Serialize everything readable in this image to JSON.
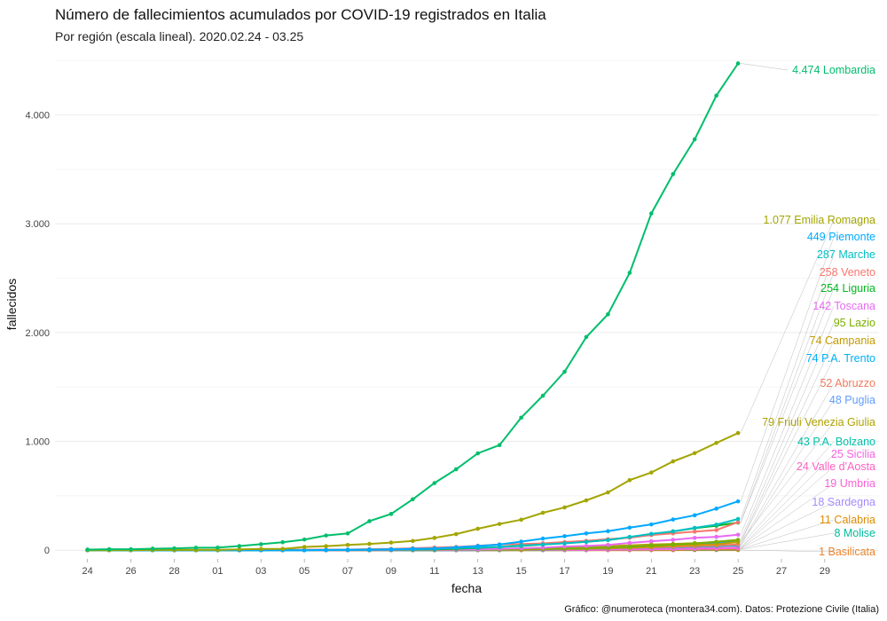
{
  "chart_data": {
    "type": "line",
    "title": "Número de fallecimientos acumulados por COVID-19 registrados en Italia",
    "subtitle": "Por región (escala lineal). 2020.02.24 - 03.25",
    "xlabel": "fecha",
    "ylabel": "fallecidos",
    "caption": "Gráfico: @numeroteca (montera34.com). Datos: Protezione Civile (Italia)",
    "x": [
      "24",
      "25",
      "26",
      "27",
      "28",
      "29",
      "01",
      "02",
      "03",
      "04",
      "05",
      "06",
      "07",
      "08",
      "09",
      "10",
      "11",
      "12",
      "13",
      "14",
      "15",
      "16",
      "17",
      "18",
      "19",
      "20",
      "21",
      "22",
      "23",
      "24",
      "25"
    ],
    "x_ticks": [
      "24",
      "26",
      "28",
      "01",
      "03",
      "05",
      "07",
      "09",
      "11",
      "13",
      "15",
      "17",
      "19",
      "21",
      "23",
      "25",
      "27",
      "29"
    ],
    "y_ticks": [
      0,
      1000,
      2000,
      3000,
      4000
    ],
    "y_tick_labels": [
      "0",
      "1.000",
      "2.000",
      "3.000",
      "4.000"
    ],
    "ylim": [
      -80,
      4600
    ],
    "grid": true,
    "legend": "none",
    "series": [
      {
        "name": "Lombardia",
        "label": "4.474 Lombardia",
        "color": "#00BE6C",
        "values": [
          6,
          9,
          9,
          14,
          17,
          23,
          24,
          38,
          55,
          73,
          98,
          135,
          154,
          267,
          333,
          468,
          617,
          744,
          890,
          966,
          1218,
          1420,
          1640,
          1959,
          2168,
          2549,
          3095,
          3456,
          3776,
          4178,
          4474
        ]
      },
      {
        "name": "Emilia Romagna",
        "label": "1.077 Emilia Romagna",
        "color": "#A3A500",
        "values": [
          0,
          0,
          1,
          2,
          2,
          2,
          3,
          8,
          11,
          12,
          30,
          37,
          48,
          58,
          70,
          85,
          113,
          148,
          197,
          241,
          280,
          344,
          393,
          458,
          531,
          644,
          714,
          816,
          892,
          986,
          1077
        ]
      },
      {
        "name": "Piemonte",
        "label": "449 Piemonte",
        "color": "#00A9FF",
        "values": [
          0,
          0,
          0,
          0,
          0,
          0,
          0,
          0,
          0,
          0,
          0,
          2,
          4,
          5,
          8,
          13,
          16,
          26,
          38,
          52,
          79,
          107,
          129,
          154,
          175,
          207,
          237,
          282,
          321,
          382,
          449
        ]
      },
      {
        "name": "Marche",
        "label": "287 Marche",
        "color": "#00BFC4",
        "values": [
          0,
          0,
          0,
          0,
          0,
          0,
          0,
          0,
          0,
          0,
          0,
          1,
          3,
          6,
          7,
          9,
          12,
          21,
          24,
          31,
          42,
          52,
          63,
          77,
          94,
          122,
          150,
          173,
          205,
          235,
          287
        ]
      },
      {
        "name": "Veneto",
        "label": "258 Veneto",
        "color": "#F8766D",
        "values": [
          1,
          1,
          2,
          2,
          2,
          2,
          2,
          2,
          3,
          4,
          5,
          6,
          6,
          10,
          12,
          18,
          24,
          30,
          41,
          53,
          57,
          63,
          75,
          86,
          101,
          115,
          139,
          154,
          170,
          185,
          258
        ]
      },
      {
        "name": "Liguria",
        "label": "254 Liguria",
        "color": "#00B81F",
        "values": [
          0,
          0,
          0,
          0,
          0,
          0,
          0,
          0,
          1,
          2,
          3,
          3,
          3,
          3,
          5,
          6,
          7,
          14,
          21,
          30,
          39,
          51,
          66,
          77,
          93,
          119,
          142,
          173,
          202,
          225,
          254
        ]
      },
      {
        "name": "Toscana",
        "label": "142 Toscana",
        "color": "#E76BF3",
        "values": [
          0,
          0,
          0,
          0,
          0,
          0,
          0,
          0,
          0,
          0,
          0,
          0,
          0,
          1,
          1,
          2,
          3,
          6,
          8,
          13,
          18,
          23,
          34,
          39,
          48,
          67,
          82,
          95,
          113,
          123,
          142
        ]
      },
      {
        "name": "Lazio",
        "label": "95 Lazio",
        "color": "#7CAE00",
        "values": [
          0,
          0,
          0,
          0,
          0,
          0,
          0,
          0,
          0,
          0,
          0,
          0,
          0,
          1,
          1,
          2,
          3,
          5,
          7,
          9,
          12,
          14,
          17,
          20,
          24,
          30,
          40,
          51,
          63,
          78,
          95
        ]
      },
      {
        "name": "Campania",
        "label": "74 Campania",
        "color": "#C49A00",
        "values": [
          0,
          0,
          0,
          0,
          0,
          0,
          0,
          0,
          0,
          0,
          0,
          0,
          0,
          0,
          1,
          1,
          1,
          2,
          4,
          5,
          5,
          10,
          13,
          16,
          21,
          26,
          33,
          44,
          49,
          55,
          74
        ]
      },
      {
        "name": "P.A. Trento",
        "label": "74 P.A. Trento",
        "color": "#00B0F6",
        "values": [
          0,
          0,
          0,
          0,
          0,
          0,
          0,
          0,
          0,
          0,
          0,
          0,
          0,
          0,
          0,
          0,
          0,
          1,
          2,
          3,
          5,
          8,
          12,
          18,
          22,
          30,
          40,
          49,
          57,
          64,
          74
        ]
      },
      {
        "name": "Abruzzo",
        "label": "52 Abruzzo",
        "color": "#F07B5F",
        "values": [
          0,
          0,
          0,
          0,
          0,
          0,
          0,
          0,
          0,
          0,
          0,
          0,
          0,
          0,
          0,
          1,
          1,
          1,
          2,
          3,
          5,
          7,
          10,
          13,
          17,
          21,
          26,
          32,
          38,
          44,
          52
        ]
      },
      {
        "name": "Puglia",
        "label": "48 Puglia",
        "color": "#619CFF",
        "values": [
          0,
          0,
          0,
          0,
          0,
          0,
          0,
          0,
          0,
          0,
          0,
          1,
          1,
          1,
          1,
          1,
          3,
          3,
          5,
          6,
          6,
          11,
          16,
          19,
          23,
          26,
          30,
          33,
          38,
          43,
          48
        ]
      },
      {
        "name": "Friuli Venezia Giulia",
        "label": "79 Friuli Venezia Giulia",
        "color": "#B0A300",
        "values": [
          0,
          0,
          0,
          0,
          0,
          0,
          0,
          0,
          0,
          0,
          0,
          0,
          0,
          0,
          1,
          1,
          2,
          4,
          7,
          12,
          15,
          20,
          25,
          31,
          38,
          45,
          52,
          58,
          65,
          71,
          79
        ]
      },
      {
        "name": "P.A. Bolzano",
        "label": "43 P.A. Bolzano",
        "color": "#00C1AA",
        "values": [
          0,
          0,
          0,
          0,
          0,
          0,
          0,
          0,
          0,
          0,
          0,
          0,
          0,
          0,
          0,
          0,
          0,
          0,
          1,
          2,
          4,
          6,
          9,
          12,
          15,
          20,
          24,
          28,
          33,
          37,
          43
        ]
      },
      {
        "name": "Sicilia",
        "label": "25 Sicilia",
        "color": "#F564E3",
        "values": [
          0,
          0,
          0,
          0,
          0,
          0,
          0,
          0,
          0,
          0,
          0,
          0,
          0,
          0,
          1,
          1,
          1,
          2,
          2,
          3,
          3,
          4,
          5,
          6,
          8,
          10,
          12,
          15,
          19,
          21,
          25
        ]
      },
      {
        "name": "Valle d'Aosta",
        "label": "24 Valle d'Aosta",
        "color": "#FF61C3",
        "values": [
          0,
          0,
          0,
          0,
          0,
          0,
          0,
          0,
          0,
          0,
          0,
          0,
          0,
          0,
          0,
          0,
          0,
          1,
          1,
          2,
          2,
          3,
          4,
          6,
          7,
          9,
          11,
          14,
          17,
          20,
          24
        ]
      },
      {
        "name": "Umbria",
        "label": "19 Umbria",
        "color": "#FB61D7",
        "values": [
          0,
          0,
          0,
          0,
          0,
          0,
          0,
          0,
          0,
          0,
          0,
          0,
          0,
          0,
          0,
          0,
          0,
          0,
          1,
          1,
          2,
          2,
          3,
          4,
          5,
          7,
          9,
          11,
          13,
          16,
          19
        ]
      },
      {
        "name": "Sardegna",
        "label": "18 Sardegna",
        "color": "#A58AFF",
        "values": [
          0,
          0,
          0,
          0,
          0,
          0,
          0,
          0,
          0,
          0,
          0,
          0,
          0,
          0,
          0,
          0,
          0,
          0,
          1,
          1,
          2,
          2,
          3,
          4,
          5,
          7,
          8,
          10,
          12,
          15,
          18
        ]
      },
      {
        "name": "Calabria",
        "label": "11 Calabria",
        "color": "#DE8C00",
        "values": [
          0,
          0,
          0,
          0,
          0,
          0,
          0,
          0,
          0,
          0,
          0,
          0,
          0,
          0,
          0,
          0,
          0,
          0,
          0,
          0,
          1,
          1,
          1,
          2,
          2,
          3,
          4,
          5,
          7,
          9,
          11
        ]
      },
      {
        "name": "Molise",
        "label": "8 Molise",
        "color": "#00BA9E",
        "values": [
          0,
          0,
          0,
          0,
          0,
          0,
          0,
          0,
          0,
          0,
          0,
          0,
          0,
          0,
          0,
          0,
          0,
          0,
          0,
          0,
          1,
          1,
          1,
          1,
          2,
          2,
          3,
          4,
          5,
          6,
          8
        ]
      },
      {
        "name": "Basilicata",
        "label": "1 Basilicata",
        "color": "#E9842C",
        "values": [
          0,
          0,
          0,
          0,
          0,
          0,
          0,
          0,
          0,
          0,
          0,
          0,
          0,
          0,
          0,
          0,
          0,
          0,
          0,
          0,
          0,
          0,
          0,
          0,
          0,
          0,
          0,
          0,
          1,
          1,
          1
        ]
      }
    ]
  }
}
